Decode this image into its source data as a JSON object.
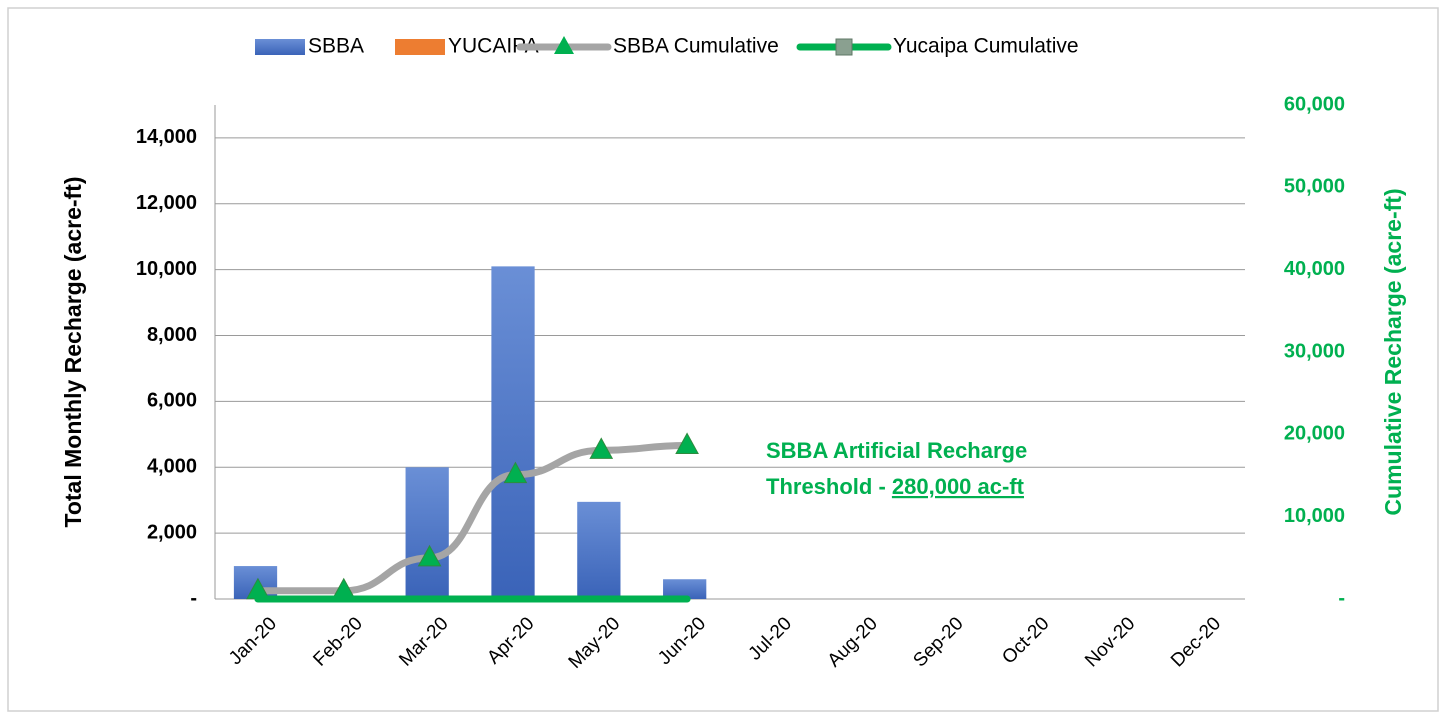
{
  "chart_data": {
    "type": "bar",
    "categories": [
      "Jan-20",
      "Feb-20",
      "Mar-20",
      "Apr-20",
      "May-20",
      "Jun-20",
      "Jul-20",
      "Aug-20",
      "Sep-20",
      "Oct-20",
      "Nov-20",
      "Dec-20"
    ],
    "series": [
      {
        "name": "SBBA",
        "type": "bar",
        "color": "#4472c4",
        "values": [
          1000,
          0,
          4000,
          10100,
          2950,
          600,
          null,
          null,
          null,
          null,
          null,
          null
        ]
      },
      {
        "name": "YUCAIPA",
        "type": "bar",
        "color": "#ed7d31",
        "values": [
          0,
          0,
          0,
          0,
          0,
          0,
          null,
          null,
          null,
          null,
          null,
          null
        ]
      },
      {
        "name": "SBBA Cumulative",
        "type": "line",
        "axis": "y2",
        "color": "#a5a5a5",
        "marker_color": "#00b050",
        "values": [
          1000,
          1000,
          5000,
          15100,
          18050,
          18650,
          null,
          null,
          null,
          null,
          null,
          null
        ]
      },
      {
        "name": "Yucaipa Cumulative",
        "type": "line",
        "axis": "y2",
        "color": "#00b050",
        "values": [
          0,
          0,
          0,
          0,
          0,
          0,
          null,
          null,
          null,
          null,
          null,
          null
        ]
      }
    ],
    "ylabel": "Total Monthly Recharge (acre-ft)",
    "y2label": "Cumulative Recharge (acre-ft)",
    "ylim": [
      0,
      15000
    ],
    "yticks": [
      {
        "value": 0,
        "label": "-"
      },
      {
        "value": 2000,
        "label": "2,000"
      },
      {
        "value": 4000,
        "label": "4,000"
      },
      {
        "value": 6000,
        "label": "6,000"
      },
      {
        "value": 8000,
        "label": "8,000"
      },
      {
        "value": 10000,
        "label": "10,000"
      },
      {
        "value": 12000,
        "label": "12,000"
      },
      {
        "value": 14000,
        "label": "14,000"
      }
    ],
    "y2lim": [
      0,
      60000
    ],
    "y2ticks": [
      {
        "value": 0,
        "label": "-"
      },
      {
        "value": 10000,
        "label": "10,000"
      },
      {
        "value": 20000,
        "label": "20,000"
      },
      {
        "value": 30000,
        "label": "30,000"
      },
      {
        "value": 40000,
        "label": "40,000"
      },
      {
        "value": 50000,
        "label": "50,000"
      },
      {
        "value": 60000,
        "label": "60,000"
      }
    ],
    "y2_color": "#00b050",
    "grid": true,
    "legend": "top",
    "annotation": {
      "line1": "SBBA Artificial Recharge",
      "line2": "Threshold - ",
      "underlined": "280,000 ac-ft",
      "color": "#00b050"
    }
  }
}
